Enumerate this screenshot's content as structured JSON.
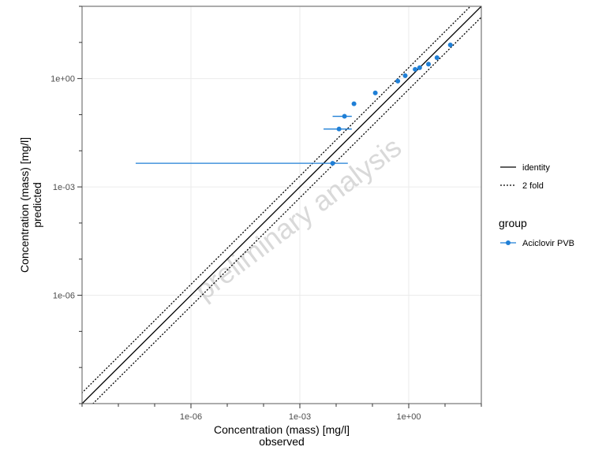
{
  "chart_data": {
    "type": "scatter",
    "title": "",
    "xlabel": "Concentration (mass) [mg/l]",
    "xlabel_sub": "observed",
    "ylabel": "Concentration (mass) [mg/l]",
    "ylabel_sub": "predicted",
    "x_scale": "log10",
    "y_scale": "log10",
    "xlim": [
      1e-09,
      100
    ],
    "ylim": [
      1e-09,
      100
    ],
    "x_ticks": [
      {
        "value": 1e-06,
        "label": "1e-06"
      },
      {
        "value": 0.001,
        "label": "1e-03"
      },
      {
        "value": 1,
        "label": "1e+00"
      }
    ],
    "y_ticks": [
      {
        "value": 1e-06,
        "label": "1e-06"
      },
      {
        "value": 0.001,
        "label": "1e-03"
      },
      {
        "value": 1,
        "label": "1e+00"
      }
    ],
    "grid": true,
    "watermark": "preliminary analysis",
    "reference_lines": [
      {
        "name": "identity",
        "style": "solid",
        "factor": 1
      },
      {
        "name": "2 fold",
        "style": "dotted",
        "factor": 2
      }
    ],
    "legend": {
      "placement": "right",
      "lines_title": "",
      "group_title": "group"
    },
    "series": [
      {
        "name": "Aciclovir PVB",
        "color": "#1f7fd6",
        "points": [
          {
            "x": 0.008,
            "y": 0.0045,
            "xmin": 3e-08,
            "xmax": 0.021
          },
          {
            "x": 0.012,
            "y": 0.04,
            "xmin": 0.0045,
            "xmax": 0.027
          },
          {
            "x": 0.017,
            "y": 0.09,
            "xmin": 0.008,
            "xmax": 0.027
          },
          {
            "x": 0.031,
            "y": 0.2
          },
          {
            "x": 0.12,
            "y": 0.4
          },
          {
            "x": 0.5,
            "y": 0.85
          },
          {
            "x": 0.8,
            "y": 1.2
          },
          {
            "x": 1.5,
            "y": 1.8
          },
          {
            "x": 2.0,
            "y": 2.0
          },
          {
            "x": 3.5,
            "y": 2.5
          },
          {
            "x": 6.0,
            "y": 3.8
          },
          {
            "x": 14.0,
            "y": 8.5
          }
        ]
      }
    ]
  }
}
